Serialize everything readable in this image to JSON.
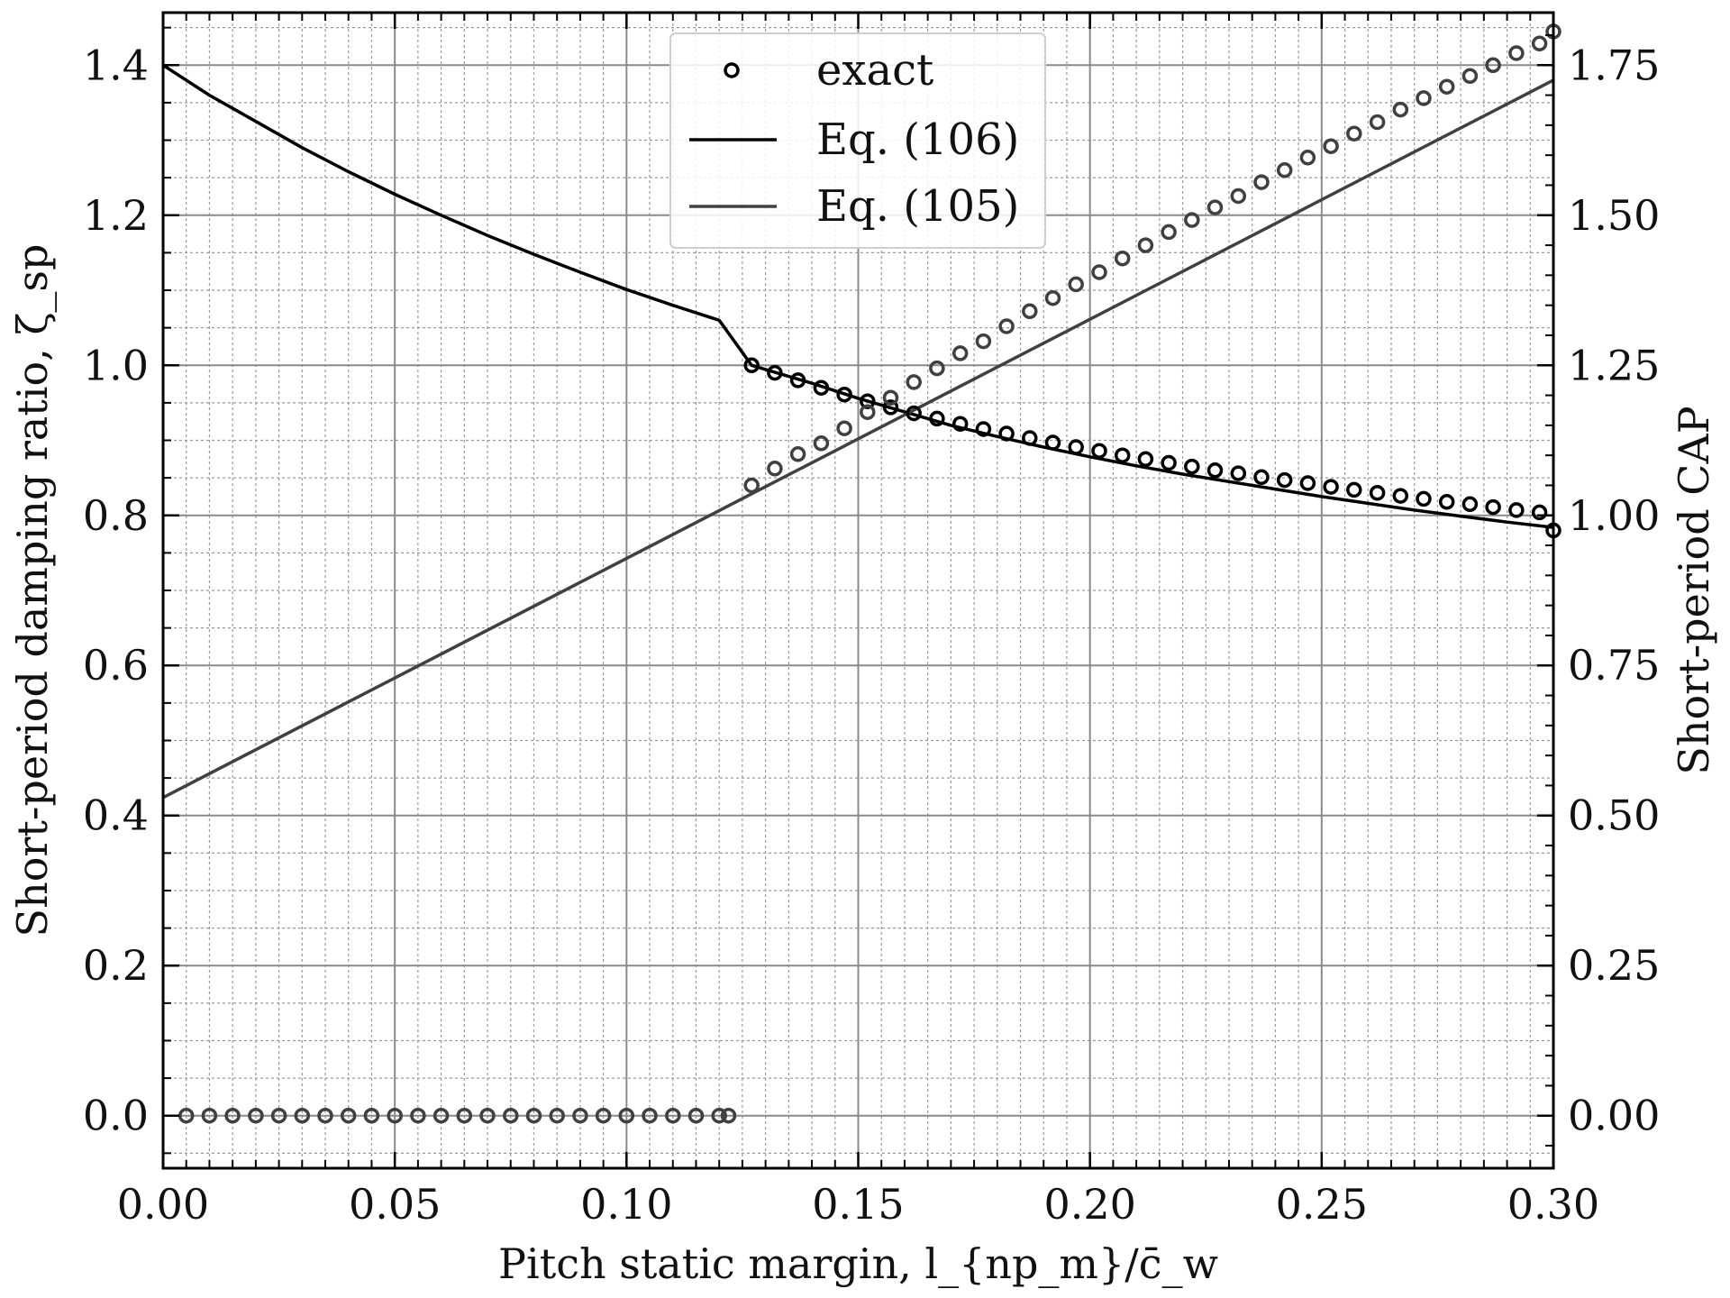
{
  "chart_data": {
    "type": "line",
    "title": "",
    "xlabel": "Pitch static margin, l_{np_m}/c̄_w",
    "ylabel_left": "Short-period damping ratio, ζ_sp",
    "ylabel_right": "Short-period CAP",
    "x_ticks": [
      "0.00",
      "0.05",
      "0.10",
      "0.15",
      "0.20",
      "0.25",
      "0.30"
    ],
    "y_left_ticks": [
      "0.0",
      "0.2",
      "0.4",
      "0.6",
      "0.8",
      "1.0",
      "1.2",
      "1.4"
    ],
    "y_right_ticks": [
      "0.00",
      "0.25",
      "0.50",
      "0.75",
      "1.00",
      "1.25",
      "1.50",
      "1.75"
    ],
    "xlim": [
      0,
      0.3
    ],
    "ylim_left": [
      -0.07,
      1.47
    ],
    "ylim_right": [
      -0.0875,
      1.8375
    ],
    "grid": true,
    "legend_position": "top-center",
    "legend": [
      {
        "label": "exact",
        "marker": "circle"
      },
      {
        "label": "Eq. (106)",
        "line_color": "#000000"
      },
      {
        "label": "Eq. (105)",
        "line_color": "#404040"
      }
    ],
    "series": [
      {
        "name": "Eq. (106)",
        "axis": "left",
        "kind": "line",
        "color": "#000000",
        "x": [
          0,
          0.01,
          0.02,
          0.03,
          0.04,
          0.05,
          0.06,
          0.07,
          0.08,
          0.09,
          0.1,
          0.11,
          0.12,
          0.127,
          0.14,
          0.15,
          0.16,
          0.17,
          0.18,
          0.19,
          0.2,
          0.21,
          0.22,
          0.23,
          0.24,
          0.25,
          0.26,
          0.27,
          0.28,
          0.29,
          0.3
        ],
        "y": [
          1.4,
          1.36,
          1.325,
          1.29,
          1.258,
          1.228,
          1.2,
          1.173,
          1.148,
          1.124,
          1.101,
          1.08,
          1.06,
          1.0,
          0.976,
          0.956,
          0.938,
          0.92,
          0.905,
          0.891,
          0.878,
          0.866,
          0.855,
          0.845,
          0.835,
          0.825,
          0.816,
          0.807,
          0.799,
          0.791,
          0.784
        ]
      },
      {
        "name": "Eq. (105)",
        "axis": "right",
        "kind": "line",
        "color": "#404040",
        "x": [
          0,
          0.3
        ],
        "y": [
          0.53,
          1.725
        ]
      },
      {
        "name": "exact",
        "axis": "left",
        "kind": "markers",
        "color": "#000000",
        "x": [
          0.127,
          0.132,
          0.137,
          0.142,
          0.147,
          0.152,
          0.157,
          0.162,
          0.167,
          0.172,
          0.177,
          0.182,
          0.187,
          0.192,
          0.197,
          0.202,
          0.207,
          0.212,
          0.217,
          0.222,
          0.227,
          0.232,
          0.237,
          0.242,
          0.247,
          0.252,
          0.257,
          0.262,
          0.267,
          0.272,
          0.277,
          0.282,
          0.287,
          0.292,
          0.297,
          0.3
        ],
        "y": [
          1.0,
          0.99,
          0.98,
          0.97,
          0.961,
          0.952,
          0.944,
          0.936,
          0.929,
          0.922,
          0.915,
          0.909,
          0.903,
          0.897,
          0.891,
          0.886,
          0.88,
          0.875,
          0.87,
          0.865,
          0.86,
          0.856,
          0.851,
          0.847,
          0.843,
          0.838,
          0.834,
          0.83,
          0.826,
          0.822,
          0.818,
          0.815,
          0.811,
          0.807,
          0.804,
          0.78
        ]
      },
      {
        "name": "exact",
        "axis": "right",
        "kind": "markers",
        "color": "#404040",
        "x": [
          0.127,
          0.132,
          0.137,
          0.142,
          0.147,
          0.152,
          0.157,
          0.162,
          0.167,
          0.172,
          0.177,
          0.182,
          0.187,
          0.192,
          0.197,
          0.202,
          0.207,
          0.212,
          0.217,
          0.222,
          0.227,
          0.232,
          0.237,
          0.242,
          0.247,
          0.252,
          0.257,
          0.262,
          0.267,
          0.272,
          0.277,
          0.282,
          0.287,
          0.292,
          0.297,
          0.3
        ],
        "y": [
          1.05,
          1.078,
          1.102,
          1.12,
          1.145,
          1.172,
          1.196,
          1.222,
          1.245,
          1.27,
          1.29,
          1.315,
          1.34,
          1.362,
          1.385,
          1.405,
          1.428,
          1.45,
          1.472,
          1.492,
          1.513,
          1.532,
          1.555,
          1.575,
          1.596,
          1.615,
          1.636,
          1.655,
          1.676,
          1.695,
          1.714,
          1.732,
          1.75,
          1.77,
          1.786,
          1.806
        ]
      },
      {
        "name": "exact",
        "axis": "right",
        "kind": "markers",
        "color": "#404040",
        "x": [
          0.005,
          0.01,
          0.015,
          0.02,
          0.025,
          0.03,
          0.035,
          0.04,
          0.045,
          0.05,
          0.055,
          0.06,
          0.065,
          0.07,
          0.075,
          0.08,
          0.085,
          0.09,
          0.095,
          0.1,
          0.105,
          0.11,
          0.115,
          0.12,
          0.122
        ],
        "y": [
          0,
          0,
          0,
          0,
          0,
          0,
          0,
          0,
          0,
          0,
          0,
          0,
          0,
          0,
          0,
          0,
          0,
          0,
          0,
          0,
          0,
          0,
          0,
          0,
          0
        ]
      }
    ]
  }
}
